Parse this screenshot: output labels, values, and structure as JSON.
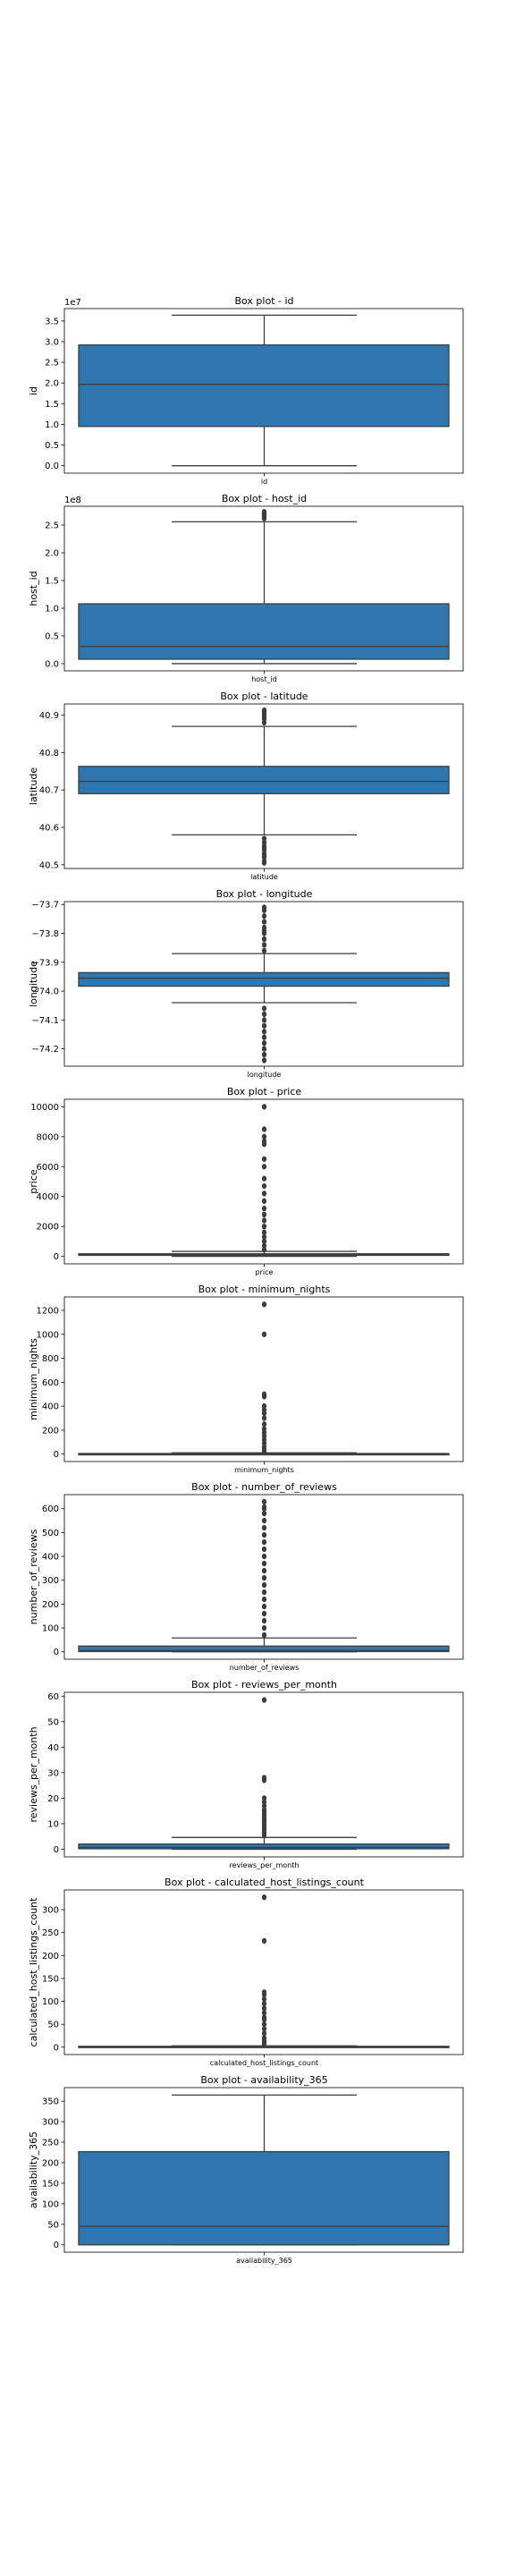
{
  "figure": {
    "box_color": "#2e77b0",
    "edge_color": "#3d3d3d",
    "flier_color": "#3d3d3d"
  },
  "chart_data": [
    {
      "type": "box",
      "title": "Box plot - id",
      "xlabel": "id",
      "ylabel": "id",
      "offset_text": "1e7",
      "ylim": [
        -0.18,
        3.8
      ],
      "yticks": [
        0.0,
        0.5,
        1.0,
        1.5,
        2.0,
        2.5,
        3.0,
        3.5
      ],
      "yticklabels": [
        "0.0",
        "0.5",
        "1.0",
        "1.5",
        "2.0",
        "2.5",
        "3.0",
        "3.5"
      ],
      "q1": 0.95,
      "median": 1.97,
      "q3": 2.92,
      "whisker_low": 0.0,
      "whisker_high": 3.64,
      "outliers": []
    },
    {
      "type": "box",
      "title": "Box plot - host_id",
      "xlabel": "host_id",
      "ylabel": "host_id",
      "offset_text": "1e8",
      "ylim": [
        -0.13,
        2.84
      ],
      "yticks": [
        0.0,
        0.5,
        1.0,
        1.5,
        2.0,
        2.5
      ],
      "yticklabels": [
        "0.0",
        "0.5",
        "1.0",
        "1.5",
        "2.0",
        "2.5"
      ],
      "q1": 0.08,
      "median": 0.31,
      "q3": 1.08,
      "whisker_low": 0.0,
      "whisker_high": 2.56,
      "outliers": [
        2.62,
        2.65,
        2.67,
        2.69,
        2.7,
        2.71,
        2.72,
        2.73,
        2.74
      ]
    },
    {
      "type": "box",
      "title": "Box plot - latitude",
      "xlabel": "latitude",
      "ylabel": "latitude",
      "offset_text": "",
      "ylim": [
        40.49,
        40.93
      ],
      "yticks": [
        40.5,
        40.6,
        40.7,
        40.8,
        40.9
      ],
      "yticklabels": [
        "40.5",
        "40.6",
        "40.7",
        "40.8",
        "40.9"
      ],
      "q1": 40.69,
      "median": 40.723,
      "q3": 40.763,
      "whisker_low": 40.58,
      "whisker_high": 40.87,
      "outliers": [
        40.88,
        40.89,
        40.895,
        40.9,
        40.905,
        40.91,
        40.913,
        40.57,
        40.56,
        40.55,
        40.545,
        40.54,
        40.53,
        40.525,
        40.52,
        40.51,
        40.505
      ]
    },
    {
      "type": "box",
      "title": "Box plot - longitude",
      "xlabel": "longitude",
      "ylabel": "longitude",
      "offset_text": "",
      "ylim": [
        -74.26,
        -73.69
      ],
      "yticks": [
        -74.2,
        -74.1,
        -74.0,
        -73.9,
        -73.8,
        -73.7
      ],
      "yticklabels": [
        "−74.2",
        "−74.1",
        "−74.0",
        "−73.9",
        "−73.8",
        "−73.7"
      ],
      "q1": -73.983,
      "median": -73.955,
      "q3": -73.936,
      "whisker_low": -74.04,
      "whisker_high": -73.87,
      "outliers": [
        -73.86,
        -73.84,
        -73.82,
        -73.8,
        -73.79,
        -73.78,
        -73.76,
        -73.74,
        -73.72,
        -73.71,
        -74.06,
        -74.08,
        -74.1,
        -74.12,
        -74.14,
        -74.16,
        -74.18,
        -74.2,
        -74.22,
        -74.24
      ]
    },
    {
      "type": "box",
      "title": "Box plot - price",
      "xlabel": "price",
      "ylabel": "price",
      "offset_text": "",
      "ylim": [
        -500,
        10500
      ],
      "yticks": [
        0,
        2000,
        4000,
        6000,
        8000,
        10000
      ],
      "yticklabels": [
        "0",
        "2000",
        "4000",
        "6000",
        "8000",
        "10000"
      ],
      "q1": 69,
      "median": 106,
      "q3": 175,
      "whisker_low": 0,
      "whisker_high": 334,
      "outliers": [
        450,
        700,
        1000,
        1300,
        1600,
        2000,
        2400,
        2800,
        3200,
        3700,
        4200,
        4700,
        5200,
        6000,
        6500,
        7500,
        7700,
        8000,
        8500,
        10000
      ]
    },
    {
      "type": "box",
      "title": "Box plot - minimum_nights",
      "xlabel": "minimum_nights",
      "ylabel": "minimum_nights",
      "offset_text": "",
      "ylim": [
        -62,
        1312
      ],
      "yticks": [
        0,
        200,
        400,
        600,
        800,
        1000,
        1200
      ],
      "yticklabels": [
        "0",
        "200",
        "400",
        "600",
        "800",
        "1000",
        "1200"
      ],
      "q1": 1,
      "median": 3,
      "q3": 5,
      "whisker_low": 1,
      "whisker_high": 11,
      "outliers": [
        20,
        40,
        60,
        90,
        120,
        150,
        180,
        210,
        250,
        300,
        340,
        370,
        400,
        480,
        500,
        1000,
        1250
      ]
    },
    {
      "type": "box",
      "title": "Box plot - number_of_reviews",
      "xlabel": "number_of_reviews",
      "ylabel": "number_of_reviews",
      "offset_text": "",
      "ylim": [
        -31,
        659
      ],
      "yticks": [
        0,
        100,
        200,
        300,
        400,
        500,
        600
      ],
      "yticklabels": [
        "0",
        "100",
        "200",
        "300",
        "400",
        "500",
        "600"
      ],
      "q1": 1,
      "median": 5,
      "q3": 24,
      "whisker_low": 0,
      "whisker_high": 58,
      "outliers": [
        70,
        100,
        130,
        160,
        190,
        220,
        250,
        280,
        310,
        340,
        370,
        400,
        430,
        460,
        490,
        520,
        550,
        580,
        600,
        607,
        629
      ]
    },
    {
      "type": "box",
      "title": "Box plot - reviews_per_month",
      "xlabel": "reviews_per_month",
      "ylabel": "reviews_per_month",
      "offset_text": "",
      "ylim": [
        -3,
        61.5
      ],
      "yticks": [
        0,
        10,
        20,
        30,
        40,
        50,
        60
      ],
      "yticklabels": [
        "0",
        "10",
        "20",
        "30",
        "40",
        "50",
        "60"
      ],
      "q1": 0.19,
      "median": 0.72,
      "q3": 2.02,
      "whisker_low": 0.01,
      "whisker_high": 4.6,
      "outliers": [
        5.5,
        6.5,
        7.5,
        8.5,
        9.5,
        10.5,
        11.5,
        12.5,
        13.5,
        14.5,
        15.5,
        17,
        18.5,
        20,
        27,
        28,
        58.5
      ]
    },
    {
      "type": "box",
      "title": "Box plot - calculated_host_listings_count",
      "xlabel": "calculated_host_listings_count",
      "ylabel": "calculated_host_listings_count",
      "offset_text": "",
      "ylim": [
        -16,
        343
      ],
      "yticks": [
        0,
        50,
        100,
        150,
        200,
        250,
        300
      ],
      "yticklabels": [
        "0",
        "50",
        "100",
        "150",
        "200",
        "250",
        "300"
      ],
      "q1": 1,
      "median": 1,
      "q3": 2,
      "whisker_low": 1,
      "whisker_high": 3,
      "outliers": [
        5,
        10,
        15,
        20,
        30,
        40,
        50,
        60,
        65,
        75,
        85,
        95,
        105,
        115,
        120,
        232,
        327
      ]
    },
    {
      "type": "box",
      "title": "Box plot - availability_365",
      "xlabel": "availability_365",
      "ylabel": "availability_365",
      "offset_text": "",
      "ylim": [
        -18,
        383
      ],
      "yticks": [
        0,
        50,
        100,
        150,
        200,
        250,
        300,
        350
      ],
      "yticklabels": [
        "0",
        "50",
        "100",
        "150",
        "200",
        "250",
        "300",
        "350"
      ],
      "q1": 0,
      "median": 45,
      "q3": 227,
      "whisker_low": 0,
      "whisker_high": 365,
      "outliers": []
    }
  ]
}
